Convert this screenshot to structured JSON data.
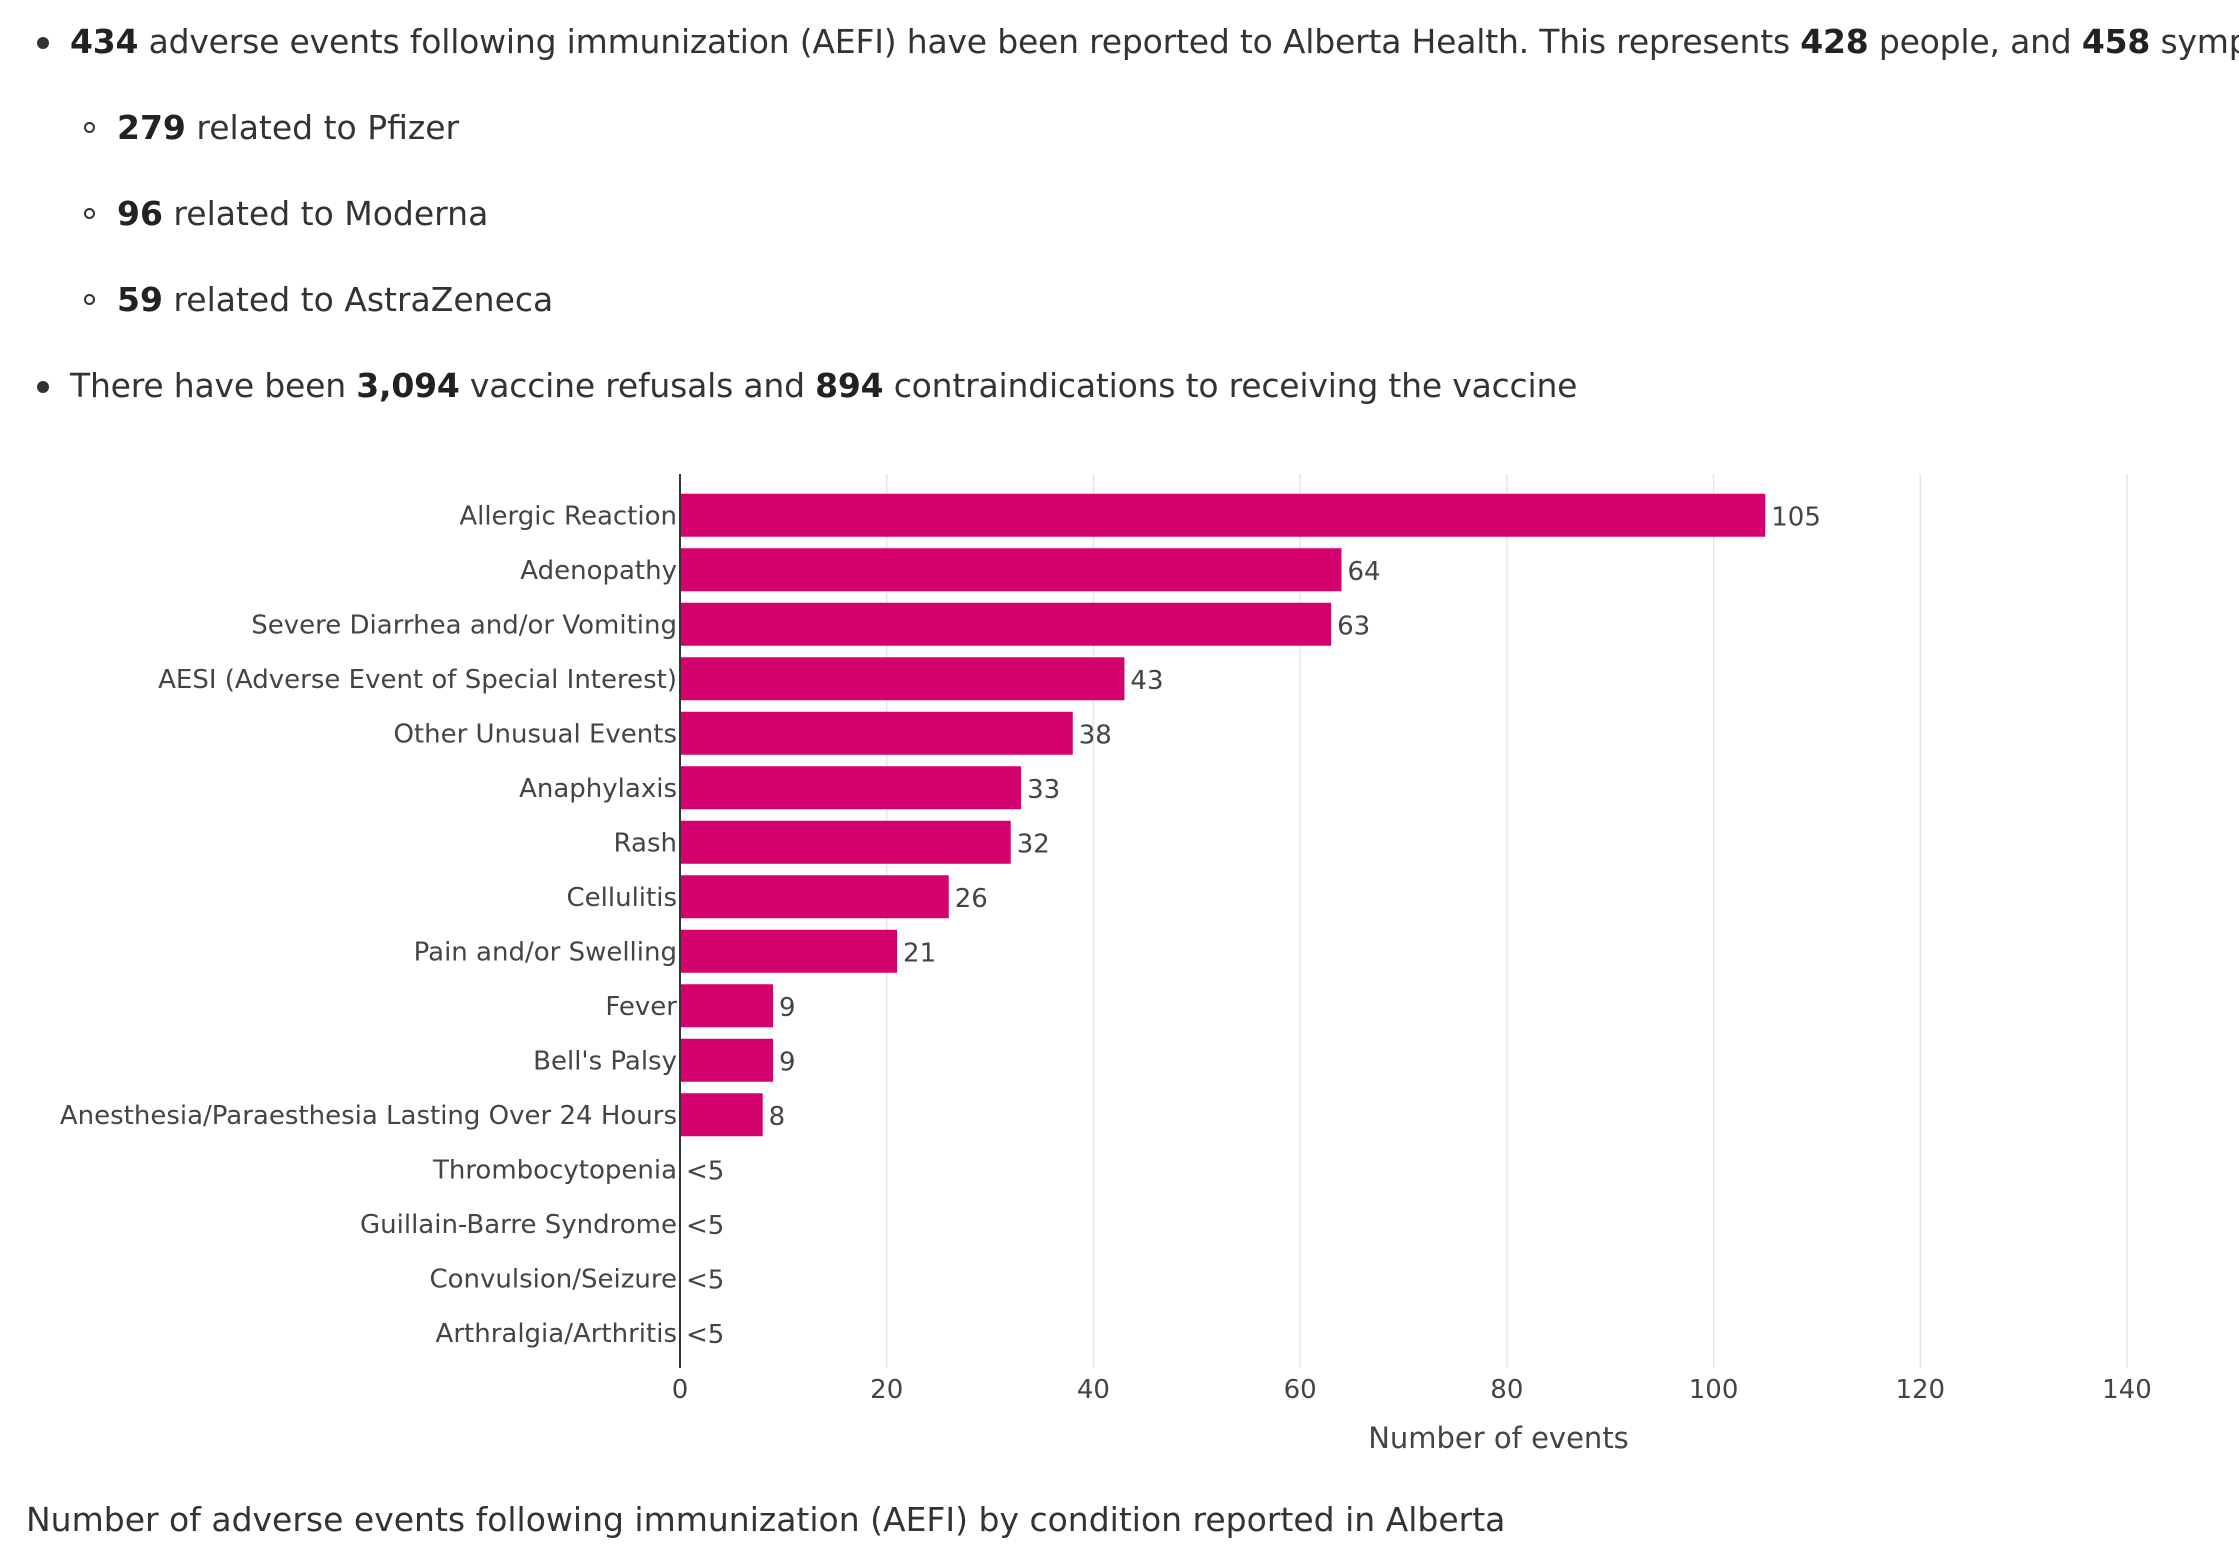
{
  "bullets": {
    "b1": {
      "n1": "434",
      "t1": " adverse events following immunization (AEFI) have been reported to Alberta Health. This represents ",
      "n2": "428",
      "t2": " people, and ",
      "n3": "458",
      "t3": " symptoms."
    },
    "subs": [
      {
        "n": "279",
        "t": " related to Pfizer"
      },
      {
        "n": "96",
        "t": " related to Moderna"
      },
      {
        "n": "59",
        "t": " related to AstraZeneca"
      }
    ],
    "b2": {
      "t1": "There have been ",
      "n1": "3,094",
      "t2": " vaccine refusals and ",
      "n2": "894",
      "t3": " contraindications to receiving the vaccine"
    }
  },
  "caption": "Number of adverse events following immunization (AEFI) by condition reported in Alberta",
  "colors": {
    "bar": "#d4006e",
    "grid": "#e6e6e6",
    "axis": "#333333"
  },
  "chart_data": {
    "type": "bar",
    "orientation": "horizontal",
    "categories": [
      "Allergic Reaction",
      "Adenopathy",
      "Severe Diarrhea and/or Vomiting",
      "AESI (Adverse Event of Special Interest)",
      "Other Unusual Events",
      "Anaphylaxis",
      "Rash",
      "Cellulitis",
      "Pain and/or Swelling",
      "Fever",
      "Bell's Palsy",
      "Anesthesia/Paraesthesia Lasting Over 24 Hours",
      "Thrombocytopenia",
      "Guillain-Barre Syndrome",
      "Convulsion/Seizure",
      "Arthralgia/Arthritis"
    ],
    "values": [
      105,
      64,
      63,
      43,
      38,
      33,
      32,
      26,
      21,
      9,
      9,
      8,
      0,
      0,
      0,
      0
    ],
    "data_labels": [
      "105",
      "64",
      "63",
      "43",
      "38",
      "33",
      "32",
      "26",
      "21",
      "9",
      "9",
      "8",
      "<5",
      "<5",
      "<5",
      "<5"
    ],
    "xlabel": "Number of events",
    "xlim": [
      0,
      140
    ],
    "xticks": [
      0,
      20,
      40,
      60,
      80,
      100,
      120,
      140
    ],
    "grid": true
  }
}
